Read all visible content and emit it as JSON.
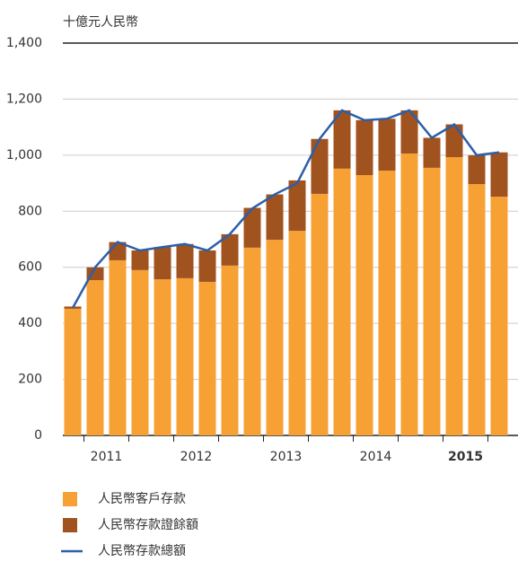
{
  "chart_data": {
    "type": "bar",
    "title": "十億元人民幣",
    "categories": [
      null,
      null,
      null,
      null,
      null,
      null,
      null,
      null,
      null,
      null,
      null,
      null,
      null,
      null,
      null,
      null,
      null,
      null,
      null,
      null
    ],
    "groups": [
      {
        "label": "2011",
        "count": 4
      },
      {
        "label": "2012",
        "count": 4
      },
      {
        "label": "2013",
        "count": 4
      },
      {
        "label": "2014",
        "count": 4
      },
      {
        "label": "2015",
        "count": 4,
        "bold": true
      }
    ],
    "series": [
      {
        "name": "人民幣客戶存款",
        "color": "#f7a033",
        "kind": "bar",
        "values": [
          452,
          554,
          625,
          590,
          557,
          561,
          548,
          606,
          670,
          698,
          730,
          862,
          952,
          929,
          945,
          1006,
          955,
          993,
          897,
          852
        ]
      },
      {
        "name": "人民幣存款證餘額",
        "color": "#a0521f",
        "kind": "bar",
        "values": [
          8,
          46,
          65,
          70,
          115,
          122,
          112,
          112,
          142,
          162,
          180,
          196,
          208,
          196,
          185,
          154,
          107,
          117,
          103,
          158
        ]
      },
      {
        "name": "人民幣存款總額",
        "color": "#2b5fa8",
        "kind": "line",
        "values": [
          455,
          600,
          690,
          660,
          672,
          683,
          660,
          718,
          810,
          860,
          900,
          1058,
          1160,
          1125,
          1130,
          1160,
          1062,
          1110,
          1000,
          1010
        ]
      }
    ],
    "ylim": [
      0,
      1400
    ],
    "yticks": [
      0,
      200,
      400,
      600,
      800,
      {
        "value": 1000,
        "label": "1,000"
      },
      {
        "value": 1200,
        "label": "1,200"
      },
      {
        "value": 1400,
        "label": "1,400"
      }
    ],
    "grid": true
  }
}
